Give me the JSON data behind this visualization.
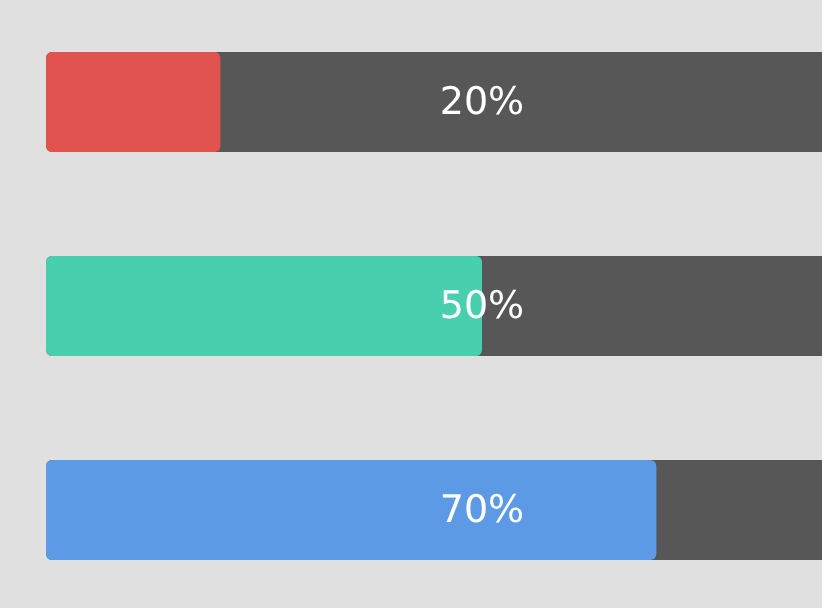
{
  "chart_data": {
    "type": "bar",
    "orientation": "horizontal",
    "categories": [
      null,
      null,
      null
    ],
    "values": [
      20,
      50,
      70
    ],
    "colors": [
      "#e0534f",
      "#48cfae",
      "#5d9ae5"
    ],
    "xlim": [
      0,
      100
    ],
    "tick_labels": false,
    "value_labels": [
      "20%",
      "50%",
      "70%"
    ]
  }
}
